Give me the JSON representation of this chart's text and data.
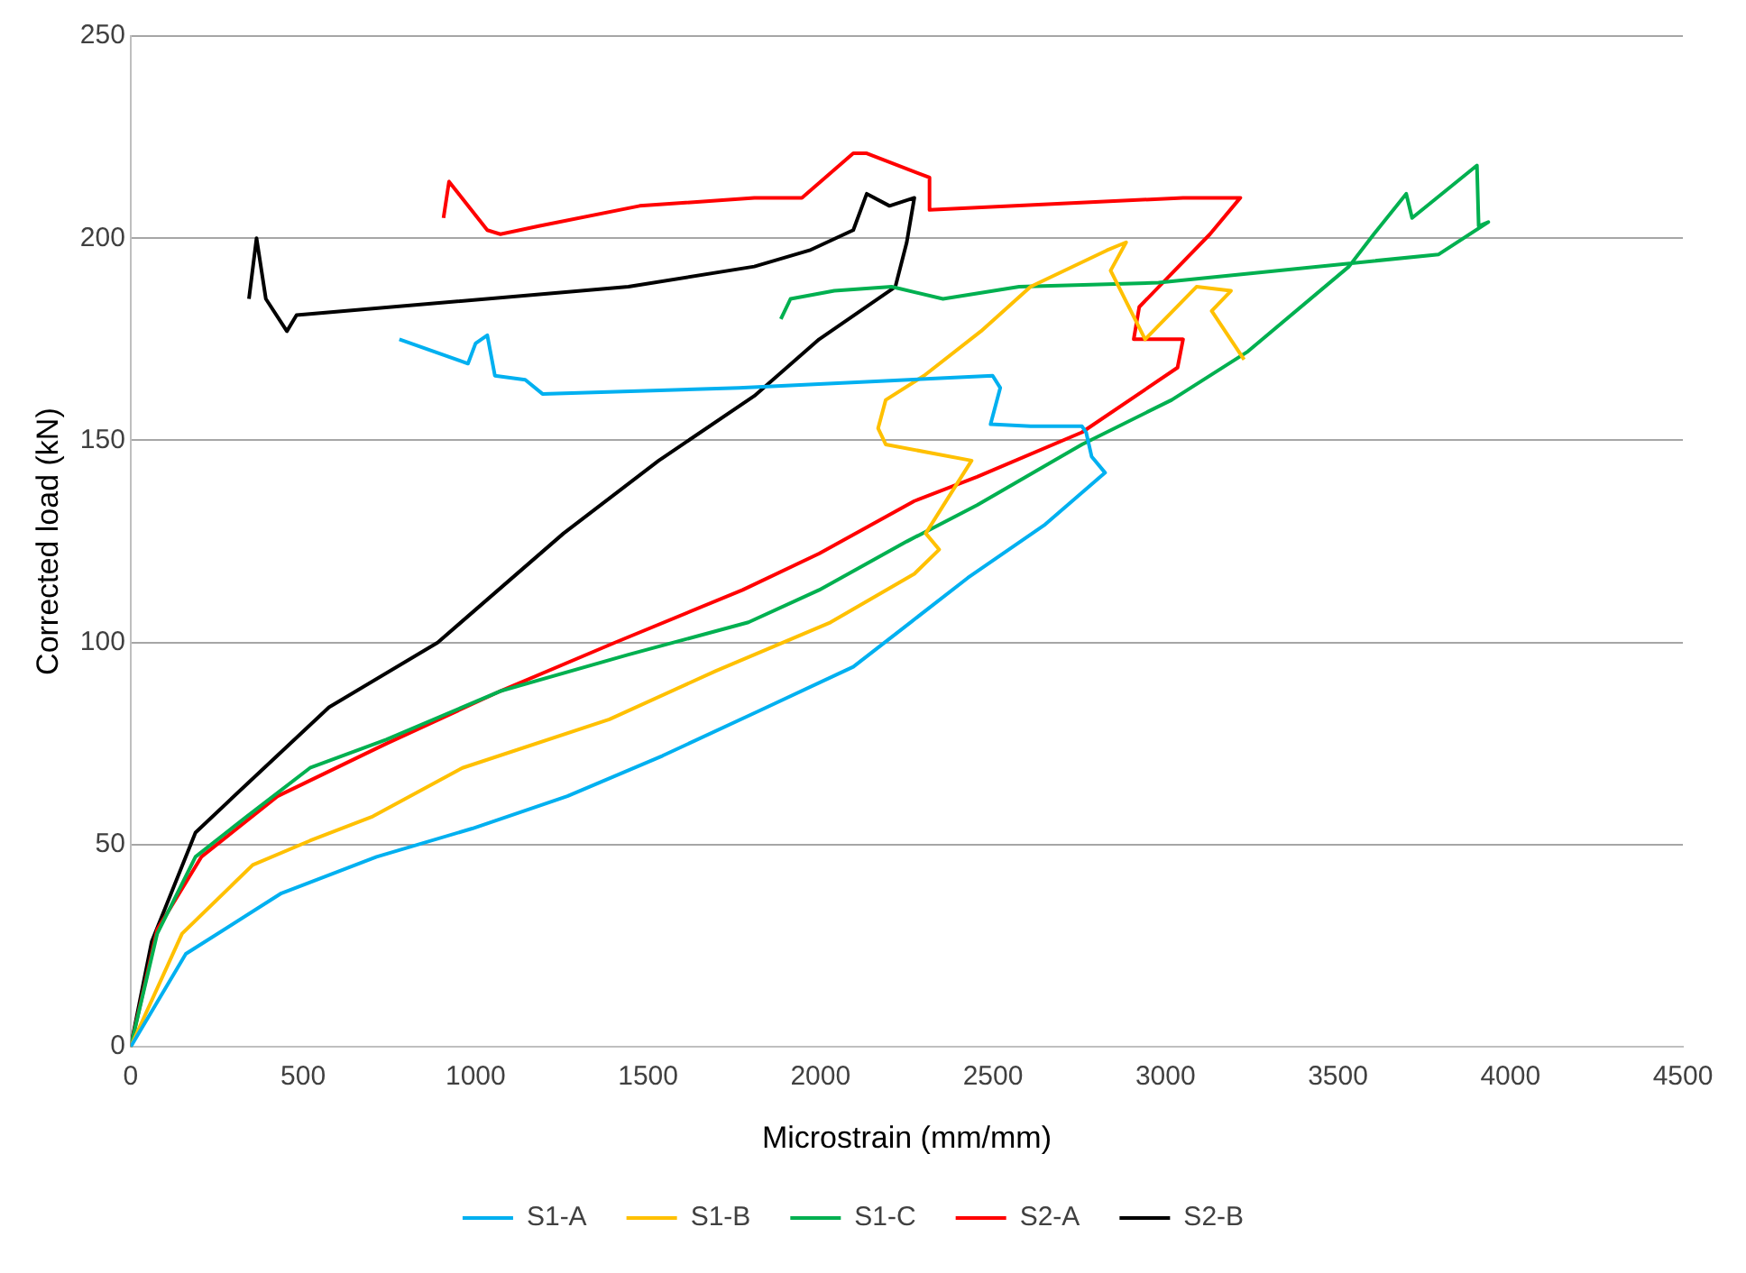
{
  "chart_data": {
    "type": "line",
    "xlabel": "Microstrain (mm/mm)",
    "ylabel": "Corrected load (kN)",
    "xlim": [
      0,
      4500
    ],
    "ylim": [
      0,
      250
    ],
    "xticks": [
      0,
      500,
      1000,
      1500,
      2000,
      2500,
      3000,
      3500,
      4000,
      4500
    ],
    "yticks": [
      0,
      50,
      100,
      150,
      200,
      250
    ],
    "grid": "y",
    "legend": "bottom",
    "marker": "none",
    "line_style": "solid",
    "series": [
      {
        "name": "S1-A",
        "color": "#00b0f0",
        "x": [
          0,
          160,
          437,
          713,
          990,
          1266,
          1542,
          1819,
          2095,
          2261,
          2427,
          2648,
          2825,
          2786,
          2770,
          2758,
          2609,
          2493,
          2521,
          2499,
          1763,
          1194,
          1144,
          1056,
          1034,
          1000,
          978,
          779
        ],
        "values": [
          0,
          23,
          38,
          47,
          54,
          62,
          72,
          83,
          94,
          105,
          116,
          129,
          142,
          146,
          152,
          153.5,
          153.5,
          154,
          163,
          166,
          163,
          161.5,
          165,
          166,
          176,
          174,
          169,
          175
        ]
      },
      {
        "name": "S1-B",
        "color": "#ffc000",
        "x": [
          0,
          149,
          354,
          520,
          702,
          962,
          1388,
          1697,
          2029,
          2272,
          2344,
          2305,
          2438,
          2189,
          2167,
          2189,
          2300,
          2465,
          2609,
          2830,
          2886,
          2841,
          2941,
          3090,
          3190,
          3134,
          3228
        ],
        "values": [
          0,
          28,
          45,
          51,
          57,
          69,
          81,
          93,
          105,
          117,
          123,
          127,
          145,
          149,
          153,
          160,
          166,
          177,
          188,
          197,
          199,
          192,
          175,
          188,
          187,
          182,
          170
        ]
      },
      {
        "name": "S1-C",
        "color": "#00b050",
        "x": [
          0,
          77,
          188,
          337,
          520,
          741,
          1072,
          1443,
          1791,
          1996,
          2250,
          2454,
          2758,
          3018,
          3239,
          3532,
          3604,
          3698,
          3715,
          3903,
          3908,
          3936,
          3792,
          2980,
          2576,
          2355,
          2206,
          2040,
          1913,
          1885
        ],
        "values": [
          0,
          28,
          47,
          57,
          69,
          76,
          88,
          97,
          105,
          113,
          125,
          134,
          149,
          160,
          172,
          193,
          201,
          211,
          205,
          218,
          203,
          204,
          196,
          189,
          188,
          185,
          188,
          187,
          185,
          180
        ]
      },
      {
        "name": "S2-A",
        "color": "#ff0000",
        "x": [
          0,
          77,
          205,
          426,
          741,
          1072,
          1404,
          1774,
          1996,
          2272,
          2454,
          2758,
          3035,
          3051,
          2908,
          2924,
          3129,
          3217,
          3051,
          2316,
          2316,
          2134,
          2095,
          1946,
          1808,
          1476,
          1183,
          1072,
          1034,
          923,
          907
        ],
        "values": [
          0,
          29,
          47,
          62,
          75,
          88,
          100,
          113,
          122,
          135,
          141,
          152,
          168,
          175,
          175,
          183,
          201,
          210,
          210,
          207,
          215,
          221,
          221,
          210,
          210,
          208,
          203,
          201,
          202,
          214,
          205
        ]
      },
      {
        "name": "S2-B",
        "color": "#000000",
        "x": [
          0,
          61,
          188,
          337,
          575,
          890,
          1255,
          1531,
          1808,
          1996,
          2217,
          2250,
          2272,
          2200,
          2134,
          2095,
          1968,
          1808,
          1443,
          481,
          453,
          392,
          365,
          343
        ],
        "values": [
          0,
          26,
          53,
          65,
          84,
          100,
          127,
          145,
          161,
          175,
          188,
          199,
          210,
          208,
          211,
          202,
          197,
          193,
          188,
          181,
          177,
          185,
          200,
          185
        ]
      }
    ]
  }
}
